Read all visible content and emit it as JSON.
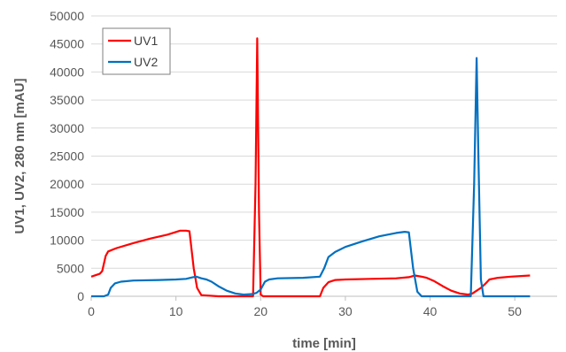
{
  "chart_data": {
    "type": "line",
    "title": "",
    "xlabel": "time [min]",
    "ylabel": "UV1, UV2, 280 nm  [mAU]",
    "xlim": [
      0,
      55
    ],
    "ylim": [
      0,
      50000
    ],
    "xticks": [
      0,
      10,
      20,
      30,
      40,
      50
    ],
    "yticks": [
      0,
      5000,
      10000,
      15000,
      20000,
      25000,
      30000,
      35000,
      40000,
      45000,
      50000
    ],
    "grid": "horizontal",
    "legend": "top-left",
    "series": [
      {
        "name": "UV1",
        "color": "#ff0000",
        "x": [
          0,
          1.0,
          1.3,
          1.7,
          2.0,
          3.0,
          5.0,
          7.0,
          9.0,
          10.5,
          11.2,
          11.6,
          12.1,
          12.5,
          13.0,
          15.0,
          18.0,
          19.1,
          19.4,
          19.6,
          19.8,
          20.0,
          20.3,
          21.0,
          25.0,
          27.0,
          27.4,
          28.0,
          28.8,
          30.0,
          33.0,
          36.0,
          37.5,
          38.2,
          39.0,
          39.6,
          40.5,
          41.5,
          42.5,
          43.5,
          44.5,
          45.0,
          45.5,
          46.0,
          46.5,
          47.0,
          48.0,
          49.5,
          51.8
        ],
        "y": [
          3500,
          4000,
          4500,
          7200,
          8000,
          8600,
          9500,
          10300,
          11000,
          11700,
          11700,
          11600,
          5000,
          1500,
          200,
          0,
          0,
          0,
          20000,
          46000,
          15000,
          300,
          0,
          0,
          0,
          0,
          1500,
          2500,
          2900,
          3000,
          3100,
          3200,
          3400,
          3700,
          3500,
          3300,
          2700,
          1800,
          1000,
          500,
          300,
          500,
          1000,
          1500,
          2200,
          3000,
          3300,
          3500,
          3700
        ]
      },
      {
        "name": "UV2",
        "color": "#0070c0",
        "x": [
          0,
          1.5,
          2.0,
          2.3,
          2.8,
          3.5,
          5.0,
          8.0,
          10.0,
          11.2,
          12.0,
          12.4,
          13.0,
          13.6,
          14.2,
          15.0,
          16.0,
          17.0,
          18.0,
          19.0,
          19.5,
          20.0,
          20.5,
          21.0,
          22.0,
          25.0,
          27.0,
          27.5,
          28.0,
          28.8,
          30.0,
          32.0,
          34.0,
          36.0,
          37.0,
          37.5,
          38.0,
          38.5,
          39.0,
          44.8,
          45.2,
          45.5,
          45.7,
          46.0,
          46.3,
          47.0,
          51.8
        ],
        "y": [
          0,
          0,
          300,
          1500,
          2300,
          2600,
          2800,
          2900,
          3000,
          3100,
          3400,
          3500,
          3200,
          3000,
          2600,
          1800,
          1000,
          500,
          300,
          400,
          600,
          1200,
          2600,
          3000,
          3200,
          3300,
          3500,
          5000,
          7000,
          7900,
          8800,
          9800,
          10700,
          11300,
          11500,
          11400,
          5000,
          800,
          0,
          0,
          20000,
          42500,
          25000,
          3000,
          0,
          0,
          0
        ]
      }
    ]
  }
}
